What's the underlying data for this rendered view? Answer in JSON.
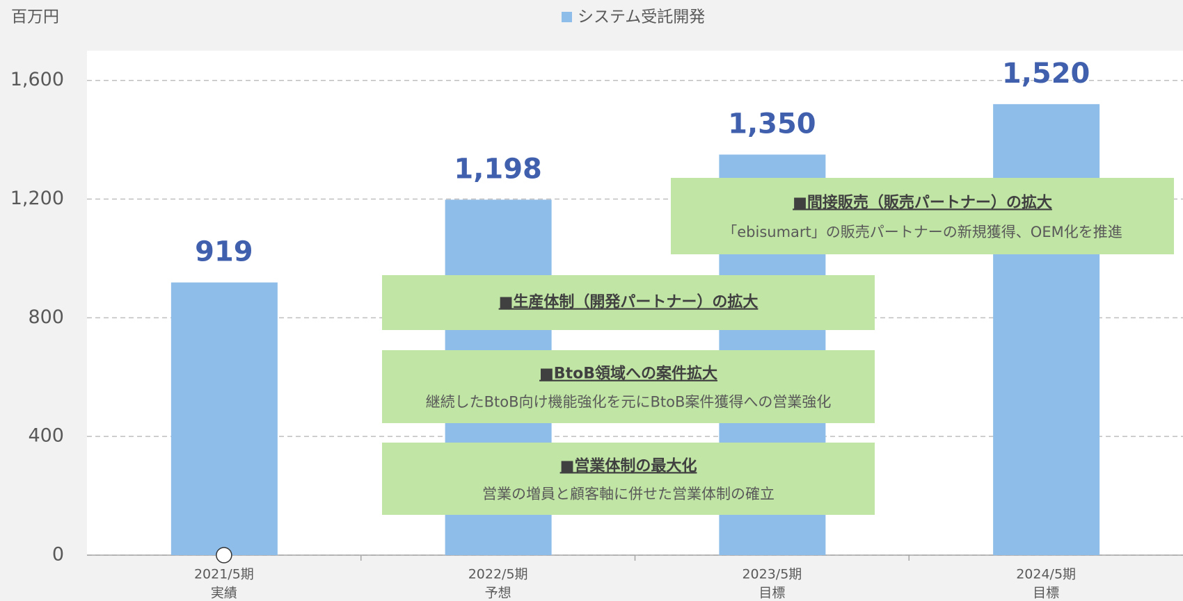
{
  "chart_data": {
    "type": "bar",
    "y_unit": "百万円",
    "categories": [
      "2021/5期",
      "2022/5期",
      "2023/5期",
      "2024/5期"
    ],
    "category_sublabels": [
      "実績",
      "予想",
      "目標",
      "目標"
    ],
    "series": [
      {
        "name": "システム受託開発",
        "color": "#8fbde9",
        "values": [
          919,
          1198,
          1350,
          1520
        ],
        "value_labels": [
          "919",
          "1,198",
          "1,350",
          "1,520"
        ]
      }
    ],
    "ylim": [
      0,
      1700
    ],
    "yticks": [
      0,
      400,
      800,
      {
        "value": 1200,
        "label": "1,200"
      },
      {
        "value": 1600,
        "label": "1,600"
      }
    ],
    "grid": true,
    "legend": "top",
    "annotations": [
      {
        "title": "■間接販売（販売パートナー）の拡大",
        "text": "「ebisumart」の販売パートナーの新規獲得、OEM化を推進"
      },
      {
        "title": "■生産体制（開発パートナー）の拡大"
      },
      {
        "title": "■BtoB領域への案件拡大",
        "text": "継続したBtoB向け機能強化を元にBtoB案件獲得への営業強化"
      },
      {
        "title": "■営業体制の最大化",
        "text": "営業の増員と顧客軸に併せた営業体制の確立"
      }
    ]
  }
}
